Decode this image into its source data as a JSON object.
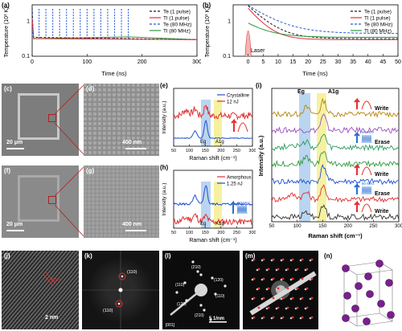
{
  "figure": {
    "labels": {
      "a": "(a)",
      "b": "(b)",
      "c": "(c)",
      "d": "(d)",
      "e": "(e)",
      "f": "(f)",
      "g": "(g)",
      "h": "(h)",
      "i": "(i)",
      "j": "(j)",
      "k": "(k)",
      "l": "(l)",
      "m": "(m)",
      "n": "(n)"
    },
    "scalebars": {
      "c": "20 μm",
      "d": "400 nm",
      "f": "20 μm",
      "g": "400 nm",
      "j": "2 nm",
      "l": "5 1/nm"
    },
    "panel_j": {
      "annotation": "(110)"
    },
    "panel_k": {
      "spot_top": "(110)",
      "spot_bottom": "(110)"
    },
    "panel_l": {
      "spots": [
        "(210)",
        "(120)",
        "(110)",
        "(110)",
        "(120)",
        "(210)"
      ],
      "zone": "[001]"
    },
    "panel_e": {
      "legend": [
        "Crystalline",
        "12 nJ"
      ],
      "eg": "Eg",
      "a1g": "A1g"
    },
    "panel_h": {
      "legend": [
        "Amorphous",
        "1.25 nJ"
      ],
      "eg": "Eg",
      "a1g": "A1g",
      "freq": "80 MHz"
    },
    "panel_i": {
      "eg": "Eg",
      "a1g": "A1g",
      "steps": [
        "Write",
        "Erase",
        "Write",
        "Erase",
        "Write"
      ],
      "freq": "80 MHz"
    },
    "panel_b": {
      "laser": "Laser"
    }
  },
  "chart_data": [
    {
      "panel": "a",
      "type": "line",
      "xlabel": "Time (ns)",
      "ylabel": "Temperature (10³ K)",
      "x_ticks": [
        0,
        100,
        200,
        300
      ],
      "y_ticks": [
        "0.1",
        "1"
      ],
      "xlim": [
        0,
        300
      ],
      "ylim_log": [
        0.1,
        3
      ],
      "series": [
        {
          "name": "Te (1 pulse)",
          "style": "dash",
          "color": "#1f1f1f"
        },
        {
          "name": "Tl (1 pulse)",
          "style": "solid",
          "color": "#e0303a"
        },
        {
          "name": "Te (80 MHz)",
          "style": "dash",
          "color": "#2a5bd7"
        },
        {
          "name": "Tl (80 MHz)",
          "style": "solid",
          "color": "#2e9a3e"
        }
      ],
      "pulse_period_ns": 12.5
    },
    {
      "panel": "b",
      "type": "line",
      "xlabel": "Time (ns)",
      "ylabel": "Temperature (10³ K)",
      "x_ticks": [
        0,
        5,
        10,
        15,
        20,
        25,
        30,
        35,
        40,
        45,
        50
      ],
      "y_ticks": [
        "0.1",
        "1"
      ],
      "xlim": [
        -5,
        50
      ],
      "series": [
        {
          "name": "Te (1 pulse)",
          "style": "dash",
          "color": "#1f1f1f"
        },
        {
          "name": "Tl (1 pulse)",
          "style": "solid",
          "color": "#e0303a"
        },
        {
          "name": "Te (80 MHz)",
          "style": "dash",
          "color": "#2a5bd7"
        },
        {
          "name": "Tl (80 MHz)",
          "style": "solid",
          "color": "#2e9a3e"
        }
      ]
    },
    {
      "panel": "e",
      "type": "line",
      "xlabel": "Raman shift (cm⁻¹)",
      "ylabel": "Intensity (a.u.)",
      "x_ticks": [
        50,
        100,
        150,
        200,
        250,
        300
      ],
      "xlim": [
        50,
        300
      ],
      "series": [
        {
          "name": "Crystalline",
          "color": "#1f4fd0"
        },
        {
          "name": "12 nJ",
          "color": "#e03030"
        }
      ]
    },
    {
      "panel": "h",
      "type": "line",
      "xlabel": "Raman shift (cm⁻¹)",
      "ylabel": "Intensity (a.u.)",
      "x_ticks": [
        50,
        100,
        150,
        200,
        250,
        300
      ],
      "xlim": [
        50,
        300
      ],
      "series": [
        {
          "name": "Amorphous",
          "color": "#e03030"
        },
        {
          "name": "1.25 nJ",
          "color": "#1f4fd0"
        }
      ]
    },
    {
      "panel": "i",
      "type": "line",
      "xlabel": "Raman shift (cm⁻¹)",
      "ylabel": "Intensity (a.u.)",
      "x_ticks": [
        50,
        100,
        150,
        200,
        250,
        300
      ],
      "xlim": [
        50,
        300
      ],
      "series": [
        {
          "color": "#b8860b"
        },
        {
          "color": "#9a4fc0"
        },
        {
          "color": "#2e9a5e"
        },
        {
          "color": "#2e9a3e"
        },
        {
          "color": "#1f4fd0"
        },
        {
          "color": "#e03030"
        },
        {
          "color": "#333333"
        }
      ]
    }
  ]
}
